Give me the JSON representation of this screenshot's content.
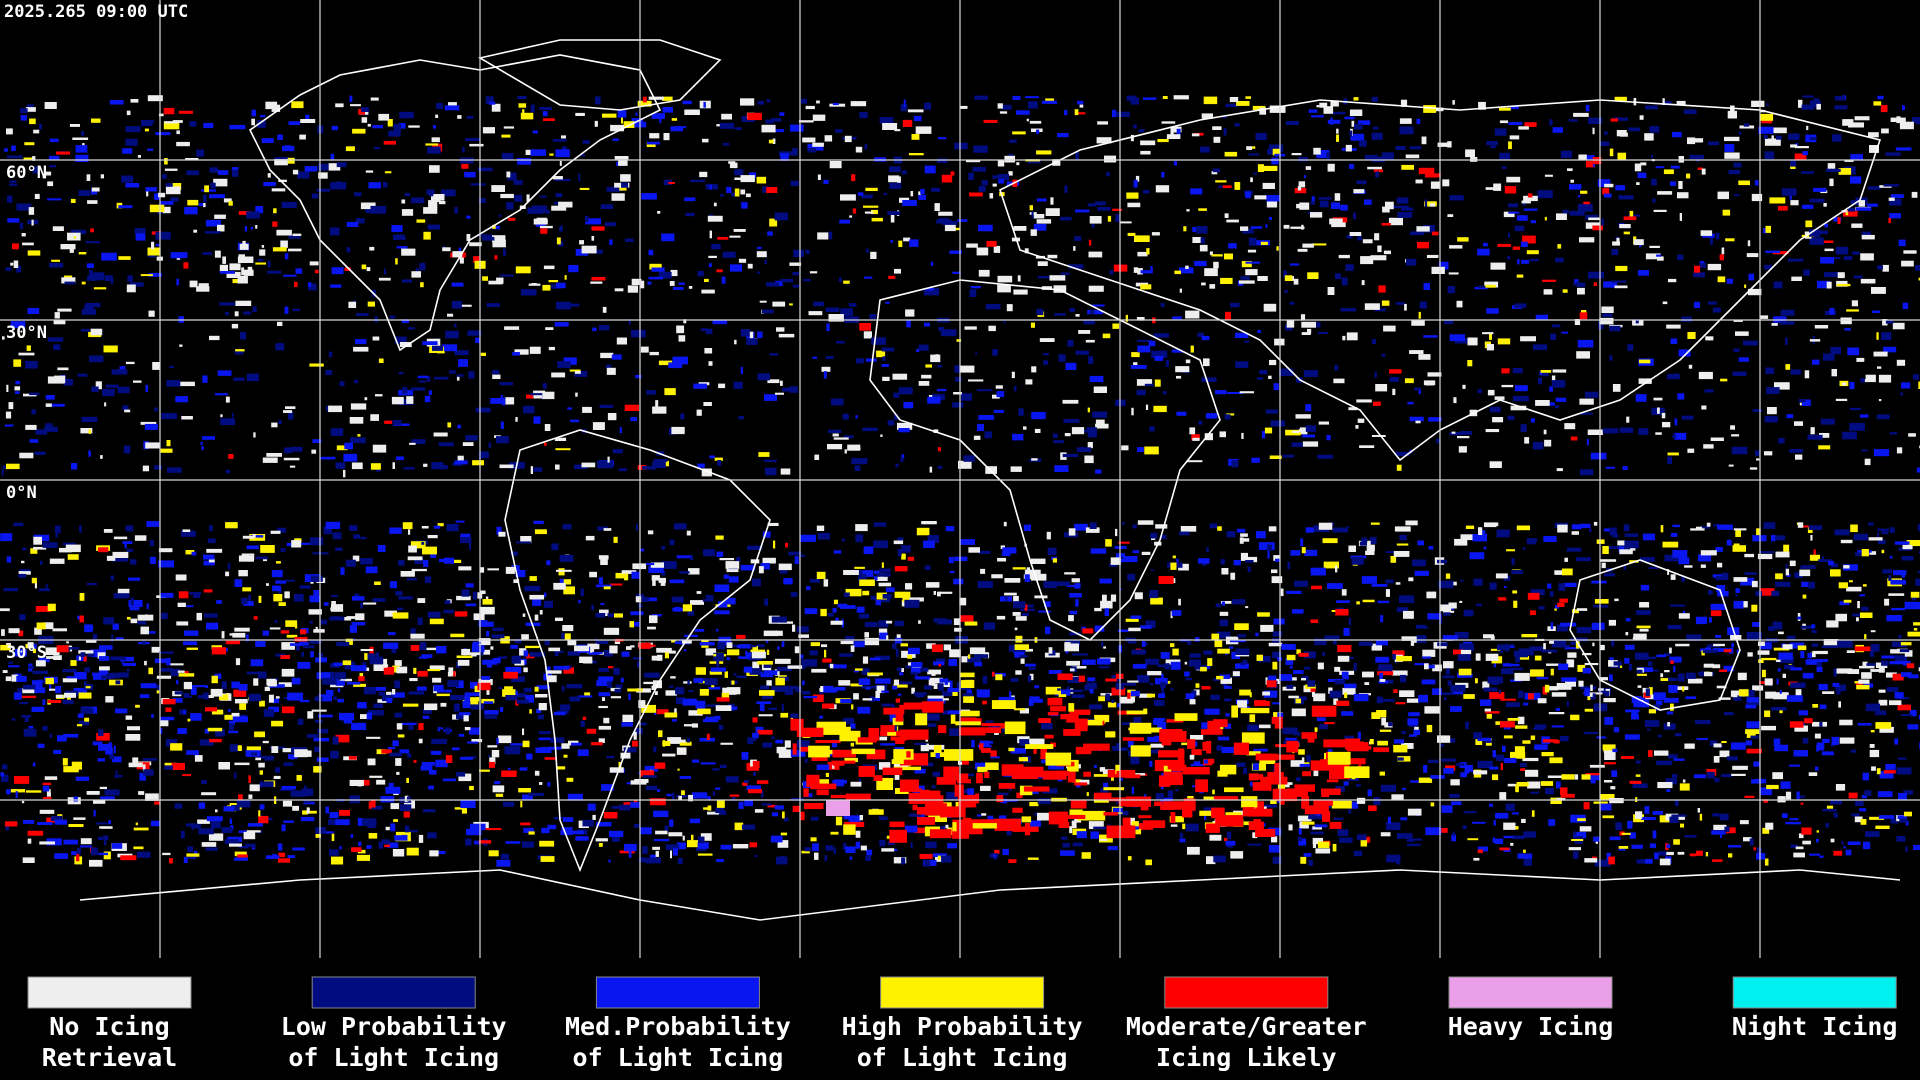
{
  "timestamp": "2025.265 09:00 UTC",
  "latitude_labels": [
    "60°N",
    "30°N",
    "0°N",
    "30°S"
  ],
  "legend": [
    {
      "label": [
        "No Icing",
        "Retrieval"
      ],
      "color": "#eeeeee"
    },
    {
      "label": [
        "Low Probability",
        "of Light Icing"
      ],
      "color": "#000c80"
    },
    {
      "label": [
        "Med.Probability",
        "of Light Icing"
      ],
      "color": "#0a16f0"
    },
    {
      "label": [
        "High Probability",
        "of Light Icing"
      ],
      "color": "#fff200"
    },
    {
      "label": [
        "Moderate/Greater",
        "Icing Likely"
      ],
      "color": "#ff0000"
    },
    {
      "label": [
        "Heavy Icing"
      ],
      "color": "#eaa0e8"
    },
    {
      "label": [
        "Night Icing"
      ],
      "color": "#00f0f0"
    }
  ]
}
